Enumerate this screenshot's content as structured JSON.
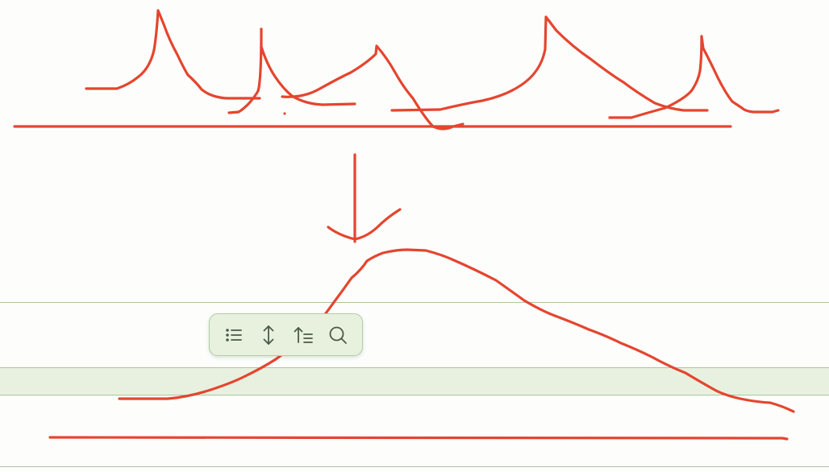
{
  "canvas": {
    "background": "#fdfefc",
    "ink_color": "#e5452f",
    "band_color": "#e8f1df",
    "band_line_color": "#a9c79a"
  },
  "toolbar": {
    "background": "#e7f1de",
    "icon_color": "#4b5a47",
    "buttons": [
      {
        "icon": "list-icon"
      },
      {
        "icon": "vertical-resize-icon"
      },
      {
        "icon": "sort-lines-icon"
      },
      {
        "icon": "search-icon"
      }
    ]
  }
}
